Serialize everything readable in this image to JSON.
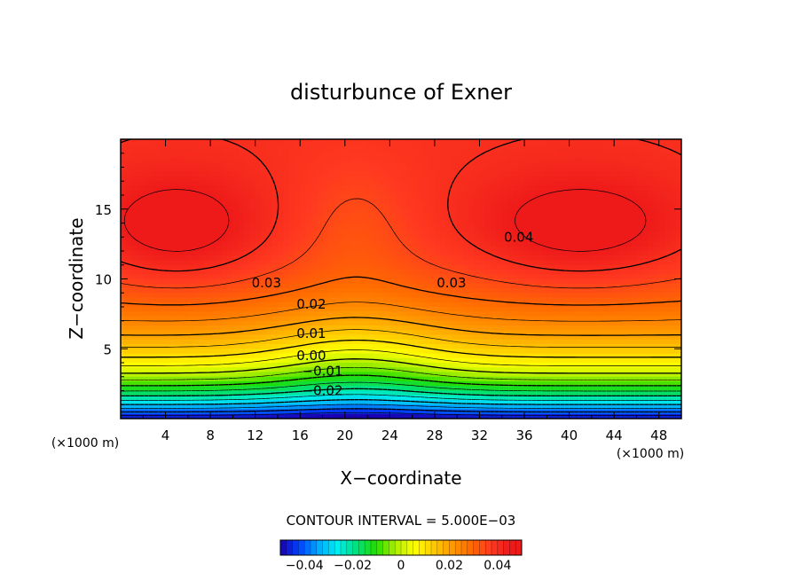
{
  "chart_data": {
    "type": "heatmap",
    "title": "disturbunce of Exner",
    "xlabel": "X−coordinate",
    "ylabel": "Z−coordinate",
    "x_unit": "(×1000 m)",
    "y_unit": "(×1000 m)",
    "xlim": [
      0,
      50
    ],
    "ylim": [
      0,
      20
    ],
    "x_ticks": [
      4,
      8,
      12,
      16,
      20,
      24,
      28,
      32,
      36,
      40,
      44,
      48
    ],
    "y_ticks": [
      5,
      10,
      15
    ],
    "contour_interval_text": "CONTOUR INTERVAL = 5.000E−03",
    "contour_labels": [
      {
        "text": "0.04",
        "x": 35.5,
        "z": 13.0
      },
      {
        "text": "0.03",
        "x": 13.0,
        "z": 9.7
      },
      {
        "text": "0.03",
        "x": 29.5,
        "z": 9.7
      },
      {
        "text": "0.02",
        "x": 17.0,
        "z": 8.2
      },
      {
        "text": "0.01",
        "x": 17.0,
        "z": 6.1
      },
      {
        "text": "0.00",
        "x": 17.0,
        "z": 4.5
      },
      {
        "text": "−0.01",
        "x": 18.0,
        "z": 3.4
      },
      {
        "text": "−0.02",
        "x": 18.0,
        "z": 2.0
      }
    ],
    "colorbar": {
      "range": [
        -0.05,
        0.05
      ],
      "tick_values": [
        -0.04,
        -0.02,
        0,
        0.02,
        0.04
      ],
      "tick_labels": [
        "−0.04",
        "−0.02",
        "0",
        "0.02",
        "0.04"
      ]
    },
    "value_range": [
      -0.05,
      0.045
    ],
    "colormap": [
      "#1a00b0",
      "#0044ff",
      "#00aaff",
      "#00eeee",
      "#00e07a",
      "#22dd00",
      "#aaee00",
      "#ffff00",
      "#ffcc00",
      "#ff9900",
      "#ff6a00",
      "#ff3a20",
      "#ee1a1a"
    ]
  }
}
